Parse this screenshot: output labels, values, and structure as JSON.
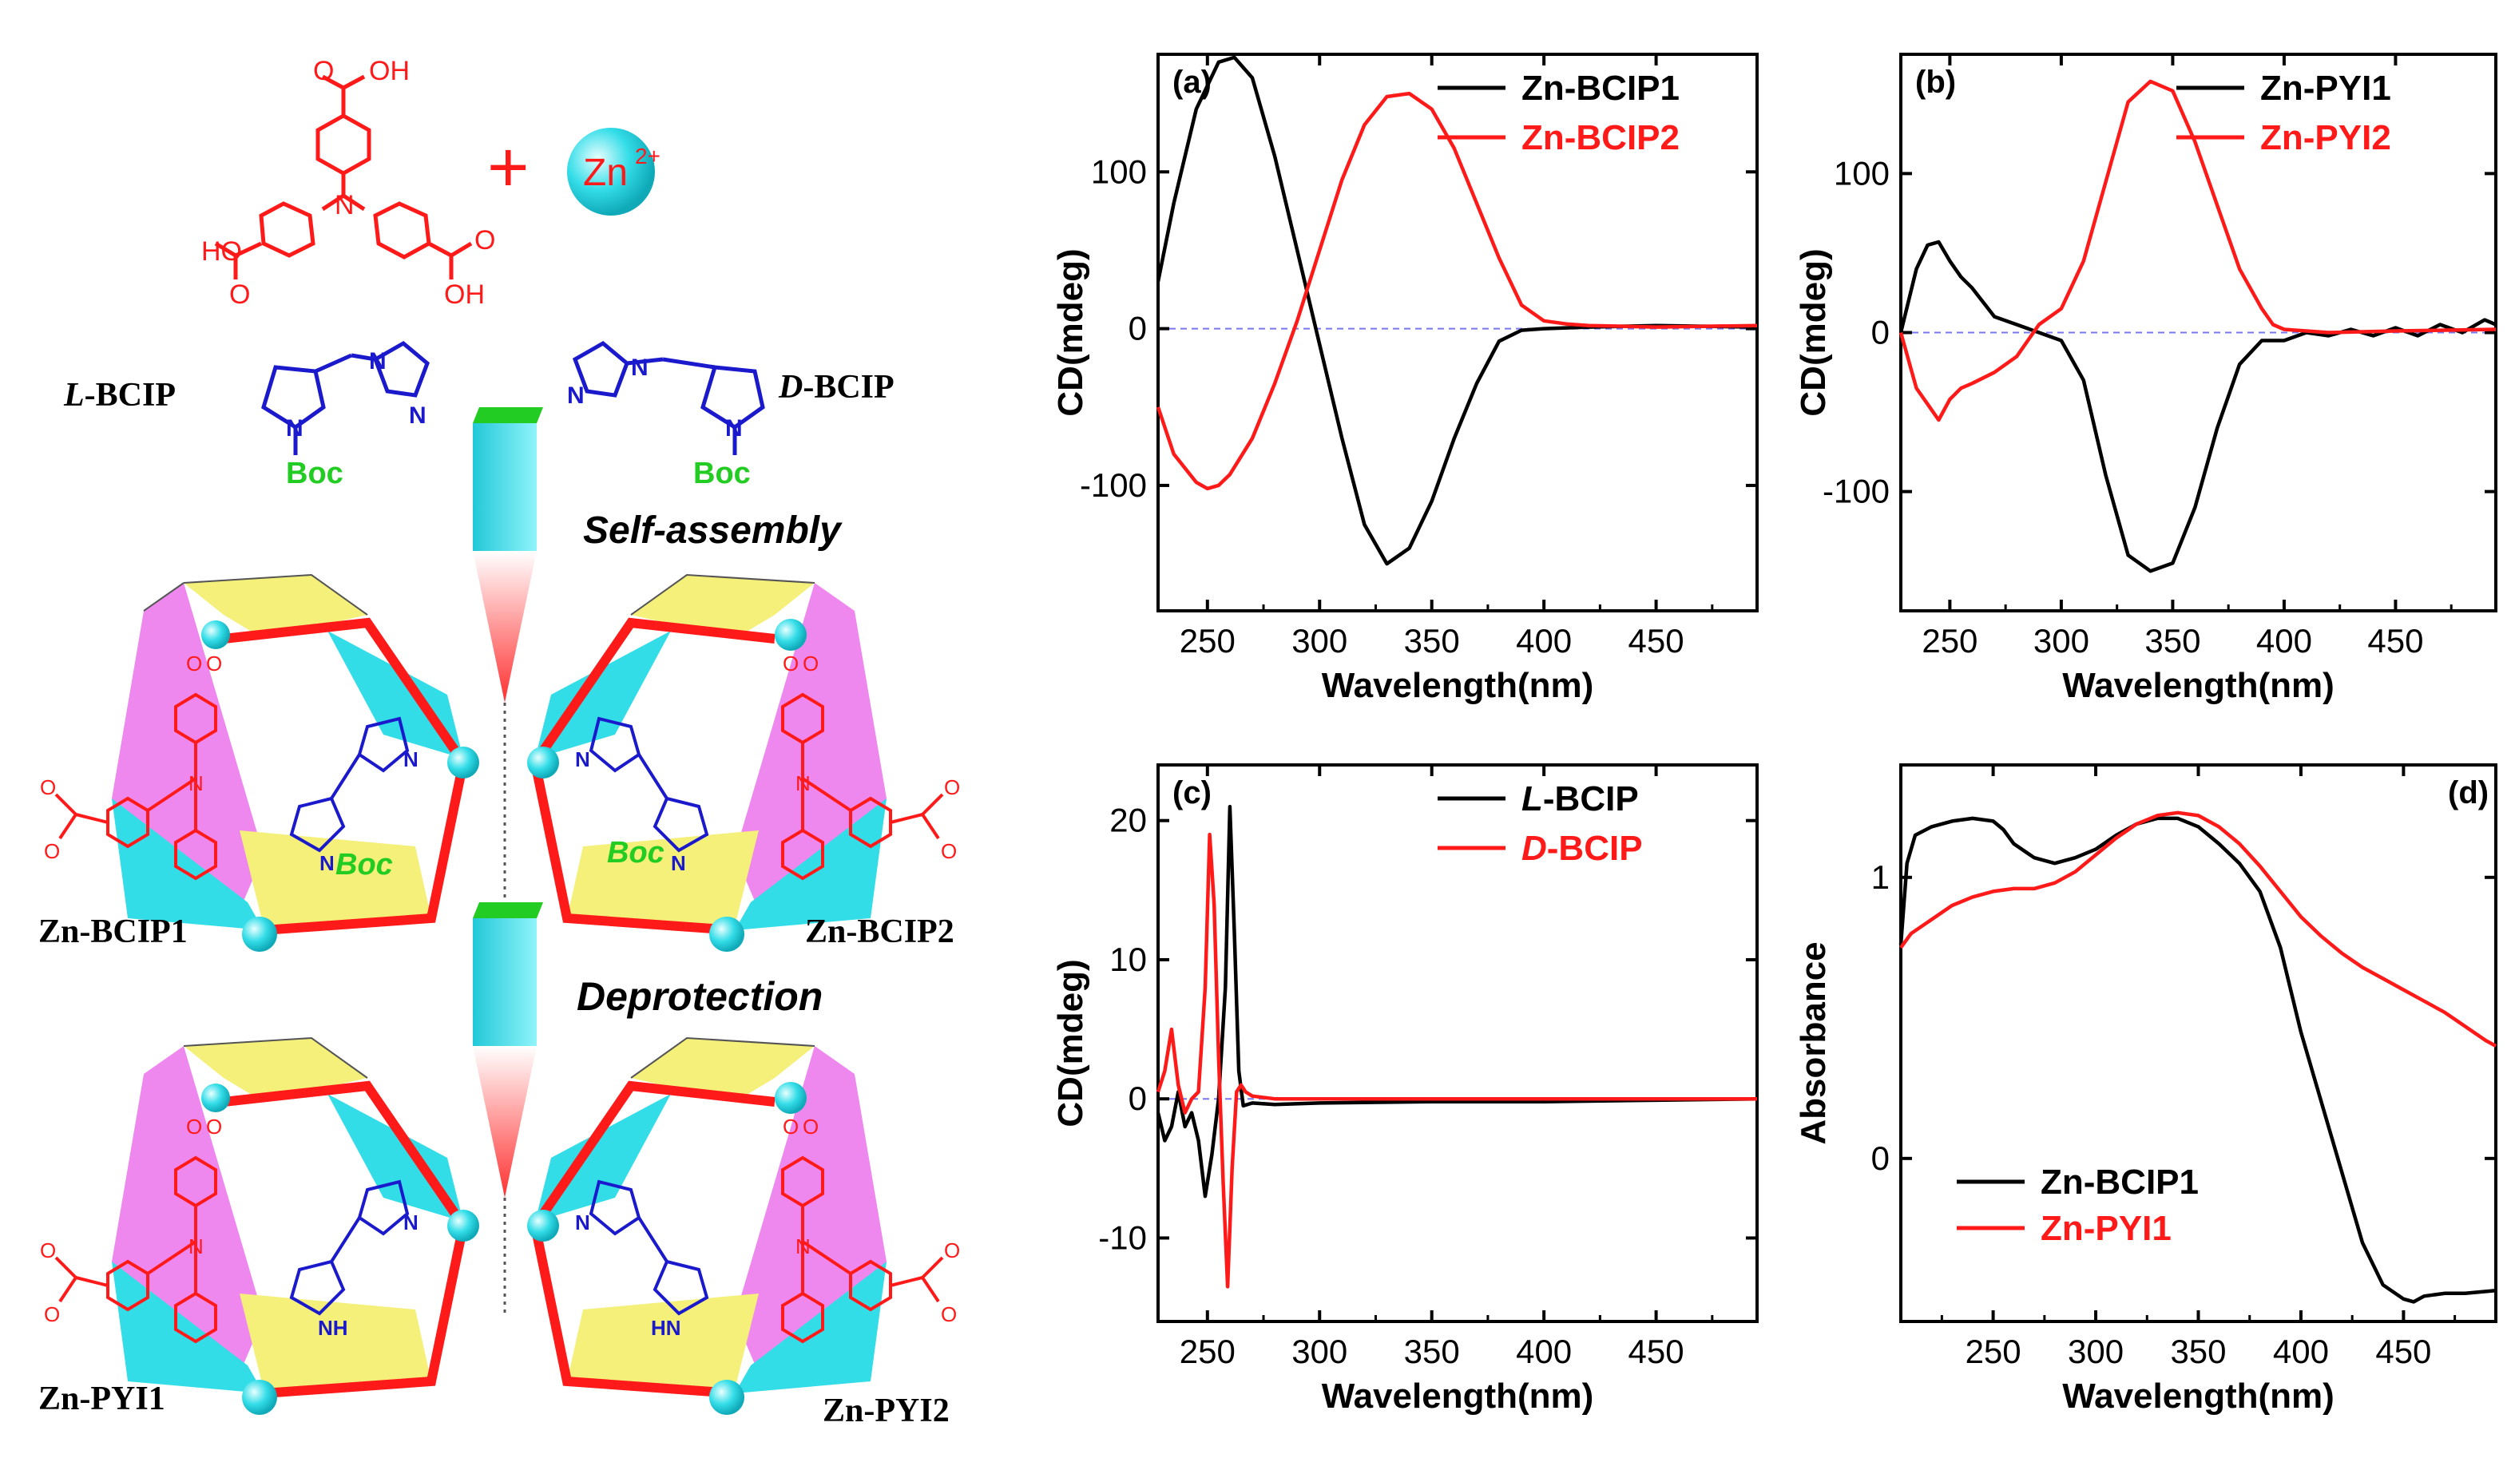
{
  "colors": {
    "red": "#ff1a1a",
    "black": "#000000",
    "blue": "#1a1acc",
    "green": "#22cc22",
    "cyan": "#33dde8",
    "magenta": "#ee88ee",
    "yellow": "#f4f07a",
    "dash": "#7777ee"
  },
  "scheme": {
    "oh_top": "OH",
    "oh_left": "HO",
    "oh_right": "OH",
    "o_letter": "O",
    "n_letter": "N",
    "nh_letter": "NH",
    "hn_letter": "HN",
    "plus": "+",
    "zn_ion": "Zn",
    "zn_charge": "2+",
    "l_bcip_prefix": "L",
    "d_bcip_prefix": "D",
    "bcip_suffix": "-BCIP",
    "boc": "Boc",
    "self_assembly": "Self-assembly",
    "deprotection": "Deprotection",
    "labels": {
      "zn_bcip1": "Zn-BCIP1",
      "zn_bcip2": "Zn-BCIP2",
      "zn_pyi1": "Zn-PYI1",
      "zn_pyi2": "Zn-PYI2"
    }
  },
  "chart_data": [
    {
      "panel": "(a)",
      "type": "line",
      "xlabel": "Wavelength(nm)",
      "ylabel": "CD(mdeg)",
      "xlim": [
        228,
        495
      ],
      "ylim": [
        -180,
        175
      ],
      "xticks": [
        250,
        300,
        350,
        400,
        450
      ],
      "yticks": [
        -100,
        0,
        100
      ],
      "legend_position": "top-right",
      "zero_line": true,
      "series": [
        {
          "name": "Zn-BCIP1",
          "color": "#000000",
          "x": [
            228,
            235,
            245,
            255,
            262,
            270,
            280,
            290,
            300,
            310,
            320,
            330,
            340,
            350,
            360,
            370,
            380,
            390,
            400,
            420,
            450,
            495
          ],
          "y": [
            30,
            80,
            140,
            170,
            173,
            160,
            110,
            50,
            -10,
            -70,
            -125,
            -150,
            -140,
            -110,
            -70,
            -35,
            -8,
            -1,
            0,
            1,
            2,
            1
          ]
        },
        {
          "name": "Zn-BCIP2",
          "color": "#ff1a1a",
          "x": [
            228,
            235,
            245,
            250,
            255,
            260,
            270,
            280,
            290,
            300,
            310,
            320,
            330,
            340,
            350,
            360,
            370,
            380,
            390,
            400,
            410,
            420,
            450,
            495
          ],
          "y": [
            -50,
            -80,
            -98,
            -102,
            -100,
            -93,
            -70,
            -35,
            5,
            50,
            95,
            130,
            148,
            150,
            140,
            115,
            80,
            45,
            15,
            5,
            3,
            2,
            1,
            2
          ]
        }
      ]
    },
    {
      "panel": "(b)",
      "type": "line",
      "xlabel": "Wavelength(nm)",
      "ylabel": "CD(mdeg)",
      "xlim": [
        228,
        495
      ],
      "ylim": [
        -175,
        175
      ],
      "xticks": [
        250,
        300,
        350,
        400,
        450
      ],
      "yticks": [
        -100,
        0,
        100
      ],
      "legend_position": "top-right",
      "zero_line": true,
      "series": [
        {
          "name": "Zn-PYI1",
          "color": "#000000",
          "x": [
            228,
            235,
            240,
            245,
            250,
            255,
            260,
            270,
            280,
            290,
            300,
            310,
            320,
            330,
            340,
            350,
            360,
            370,
            380,
            390,
            400,
            410,
            420,
            430,
            440,
            450,
            460,
            470,
            480,
            490,
            495
          ],
          "y": [
            0,
            40,
            55,
            57,
            45,
            35,
            28,
            10,
            5,
            0,
            -5,
            -30,
            -90,
            -140,
            -150,
            -145,
            -110,
            -60,
            -20,
            -5,
            -5,
            0,
            -2,
            2,
            -2,
            3,
            -2,
            5,
            0,
            8,
            5
          ]
        },
        {
          "name": "Zn-PYI2",
          "color": "#ff1a1a",
          "x": [
            228,
            235,
            240,
            245,
            250,
            255,
            260,
            270,
            280,
            290,
            300,
            310,
            320,
            330,
            340,
            350,
            360,
            370,
            380,
            390,
            395,
            400,
            410,
            420,
            450,
            495
          ],
          "y": [
            0,
            -35,
            -45,
            -55,
            -42,
            -35,
            -32,
            -25,
            -15,
            5,
            15,
            45,
            95,
            145,
            158,
            152,
            120,
            80,
            40,
            15,
            5,
            2,
            1,
            0,
            1,
            2
          ]
        }
      ]
    },
    {
      "panel": "(c)",
      "type": "line",
      "xlabel": "Wavelength(nm)",
      "ylabel": "CD(mdeg)",
      "xlim": [
        228,
        495
      ],
      "ylim": [
        -16,
        24
      ],
      "xticks": [
        250,
        300,
        350,
        400,
        450
      ],
      "yticks": [
        -10,
        0,
        10,
        20
      ],
      "legend_position": "top-right",
      "zero_line": true,
      "series": [
        {
          "name": "L-BCIP",
          "color": "#000000",
          "x": [
            228,
            231,
            234,
            237,
            240,
            243,
            246,
            249,
            252,
            255,
            258,
            260,
            262,
            264,
            266,
            270,
            280,
            300,
            350,
            400,
            450,
            495
          ],
          "y": [
            -1,
            -3,
            -2,
            0.5,
            -2,
            -1,
            -3,
            -7,
            -4,
            0,
            8,
            21,
            12,
            2,
            -0.5,
            -0.3,
            -0.4,
            -0.3,
            -0.2,
            -0.2,
            -0.1,
            0
          ]
        },
        {
          "name": "D-BCIP",
          "color": "#ff1a1a",
          "x": [
            228,
            231,
            234,
            237,
            240,
            243,
            246,
            249,
            251,
            253,
            255,
            257,
            259,
            261,
            263,
            265,
            267,
            270,
            280,
            300,
            350,
            400,
            450,
            495
          ],
          "y": [
            0.5,
            2,
            5,
            1,
            -1,
            0,
            0.5,
            8,
            19,
            14,
            3,
            -6,
            -13.5,
            -5,
            0.5,
            1,
            0.5,
            0.2,
            0,
            0,
            0,
            0,
            0,
            0
          ]
        }
      ]
    },
    {
      "panel": "(d)",
      "type": "line",
      "xlabel": "Wavelength(nm)",
      "ylabel": "Absorbance",
      "xlim": [
        205,
        495
      ],
      "ylim": [
        -0.58,
        1.4
      ],
      "xticks": [
        250,
        300,
        350,
        400,
        450
      ],
      "yticks": [
        0,
        1
      ],
      "legend_position": "bottom-left",
      "zero_line": false,
      "series": [
        {
          "name": "Zn-BCIP1",
          "color": "#000000",
          "x": [
            205,
            208,
            212,
            220,
            230,
            240,
            250,
            255,
            260,
            270,
            280,
            290,
            300,
            310,
            320,
            330,
            340,
            350,
            360,
            370,
            380,
            390,
            400,
            410,
            420,
            430,
            440,
            450,
            455,
            460,
            470,
            480,
            495
          ],
          "y": [
            0.76,
            1.05,
            1.15,
            1.18,
            1.2,
            1.21,
            1.2,
            1.17,
            1.12,
            1.07,
            1.05,
            1.07,
            1.1,
            1.15,
            1.19,
            1.21,
            1.21,
            1.18,
            1.12,
            1.05,
            0.95,
            0.75,
            0.45,
            0.2,
            -0.05,
            -0.3,
            -0.45,
            -0.5,
            -0.51,
            -0.49,
            -0.48,
            -0.48,
            -0.47
          ]
        },
        {
          "name": "Zn-PYI1",
          "color": "#ff1a1a",
          "x": [
            205,
            210,
            220,
            230,
            240,
            250,
            260,
            270,
            280,
            290,
            300,
            310,
            320,
            330,
            340,
            350,
            360,
            370,
            380,
            390,
            400,
            410,
            420,
            430,
            440,
            450,
            460,
            470,
            480,
            490,
            495
          ],
          "y": [
            0.75,
            0.8,
            0.85,
            0.9,
            0.93,
            0.95,
            0.96,
            0.96,
            0.98,
            1.02,
            1.08,
            1.14,
            1.19,
            1.22,
            1.23,
            1.22,
            1.18,
            1.12,
            1.04,
            0.95,
            0.86,
            0.79,
            0.73,
            0.68,
            0.64,
            0.6,
            0.56,
            0.52,
            0.47,
            0.42,
            0.4
          ]
        }
      ]
    }
  ]
}
